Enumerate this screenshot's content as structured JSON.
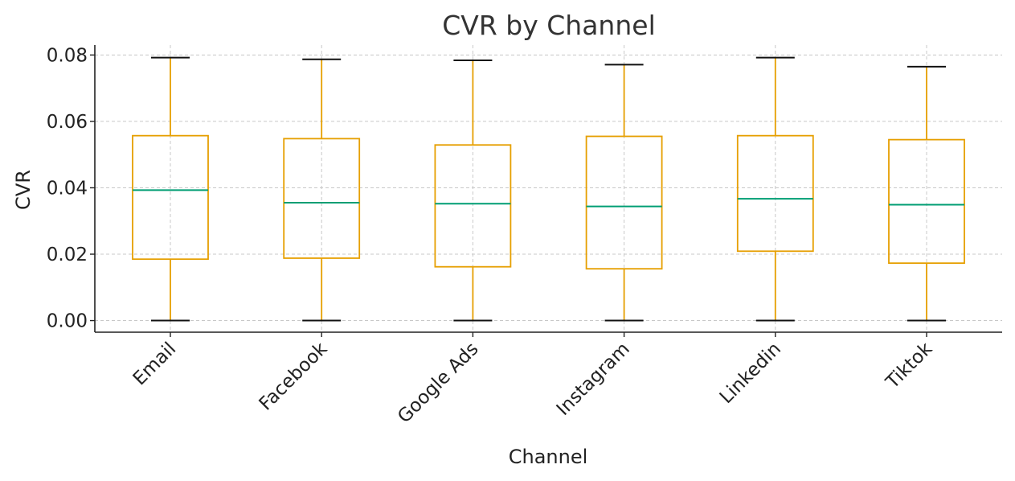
{
  "chart_data": {
    "type": "box",
    "title": "CVR by Channel",
    "xlabel": "Channel",
    "ylabel": "CVR",
    "ylim": [
      -0.0035,
      0.083
    ],
    "yticks": [
      0.0,
      0.02,
      0.04,
      0.06,
      0.08
    ],
    "ytick_labels": [
      "0.00",
      "0.02",
      "0.04",
      "0.06",
      "0.08"
    ],
    "grid": true,
    "colors": {
      "box": "#E69F00",
      "median": "#009E73",
      "cap": "#111111"
    },
    "categories": [
      "Email",
      "Facebook",
      "Google Ads",
      "Instagram",
      "Linkedin",
      "Tiktok"
    ],
    "boxes": [
      {
        "category": "Email",
        "min": 0.0,
        "q1": 0.0185,
        "median": 0.0393,
        "q3": 0.0557,
        "max": 0.0792
      },
      {
        "category": "Facebook",
        "min": 0.0,
        "q1": 0.0188,
        "median": 0.0355,
        "q3": 0.0548,
        "max": 0.0787
      },
      {
        "category": "Google Ads",
        "min": 0.0,
        "q1": 0.0162,
        "median": 0.0352,
        "q3": 0.0529,
        "max": 0.0784
      },
      {
        "category": "Instagram",
        "min": 0.0,
        "q1": 0.0156,
        "median": 0.0344,
        "q3": 0.0555,
        "max": 0.0771
      },
      {
        "category": "Linkedin",
        "min": 0.0,
        "q1": 0.0209,
        "median": 0.0367,
        "q3": 0.0557,
        "max": 0.0792
      },
      {
        "category": "Tiktok",
        "min": 0.0,
        "q1": 0.0173,
        "median": 0.0349,
        "q3": 0.0545,
        "max": 0.0765
      }
    ]
  }
}
